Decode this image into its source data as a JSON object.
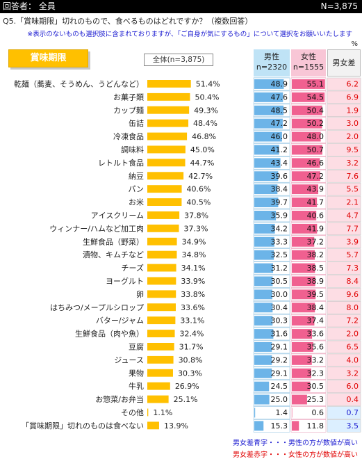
{
  "header": {
    "respondents": "回答者： 全員",
    "n_total": "N=3,875"
  },
  "question": "Q5.「賞味期限」切れのもので、食べるものはどれですか？（複数回答）",
  "note": "※表示のないものも選択肢に含まれておりますが、「ご自身が気にするもの」について選択をお願いいたします",
  "percent_unit": "%",
  "badge_label": "賞味期限",
  "total_label": "全体(n=3,875)",
  "columns": {
    "male_label": "男性",
    "male_n": "n=2320",
    "female_label": "女性",
    "female_n": "n=1555",
    "diff_label": "男女差"
  },
  "legend": {
    "blue_text": "男女差青字・・・男性の方が数値が高い",
    "red_text": "男女差赤字・・・女性の方が数値が高い"
  },
  "colors": {
    "total_bar": "#ffc000",
    "male_bar": "#6cb4e8",
    "female_bar": "#f06090",
    "male_col_bg": "#daeef8",
    "female_col_bg": "#fbe0ea",
    "diff_male_higher_bg": "#dcefff",
    "diff_female_higher_bg": "#fddde4",
    "diff_male_higher_text": "#1a1ad0",
    "diff_female_higher_text": "#e00000"
  },
  "chart_data": {
    "type": "bar",
    "categories": [
      "乾麺（蕎麦、そうめん、うどんなど）",
      "お菓子類",
      "カップ麺",
      "缶詰",
      "冷凍食品",
      "調味料",
      "レトルト食品",
      "納豆",
      "パン",
      "お米",
      "アイスクリーム",
      "ウィンナー/ハムなど加工肉",
      "生鮮食品（野菜）",
      "漬物、キムチなど",
      "チーズ",
      "ヨーグルト",
      "卵",
      "はちみつ/メープルシロップ",
      "バター/ジャム",
      "生鮮食品（肉や魚）",
      "豆腐",
      "ジュース",
      "果物",
      "牛乳",
      "お惣菜/お弁当",
      "その他",
      "「賞味期限」切れのものは食べない"
    ],
    "series": [
      {
        "name": "全体(n=3,875)",
        "values": [
          51.4,
          50.4,
          49.3,
          48.4,
          46.8,
          45.0,
          44.7,
          42.7,
          40.6,
          40.5,
          37.8,
          37.3,
          34.9,
          34.8,
          34.1,
          33.9,
          33.8,
          33.6,
          33.1,
          32.4,
          31.7,
          30.8,
          30.3,
          26.9,
          25.1,
          1.1,
          13.9
        ]
      },
      {
        "name": "男性",
        "values": [
          48.9,
          47.6,
          48.5,
          47.2,
          46.0,
          41.2,
          43.4,
          39.6,
          38.4,
          39.7,
          35.9,
          34.2,
          33.3,
          32.5,
          31.2,
          30.5,
          30.0,
          30.4,
          30.3,
          31.6,
          29.1,
          29.2,
          29.1,
          24.5,
          25.0,
          1.4,
          15.3
        ]
      },
      {
        "name": "女性",
        "values": [
          55.1,
          54.5,
          50.4,
          50.2,
          48.0,
          50.7,
          46.6,
          47.2,
          43.9,
          41.7,
          40.6,
          41.9,
          37.2,
          38.2,
          38.5,
          38.9,
          39.5,
          38.4,
          37.4,
          33.6,
          35.6,
          33.2,
          32.3,
          30.5,
          25.3,
          0.6,
          11.8
        ]
      },
      {
        "name": "男女差",
        "values": [
          6.2,
          6.9,
          1.9,
          3.0,
          2.0,
          9.5,
          3.2,
          7.6,
          5.5,
          2.1,
          4.7,
          7.7,
          3.9,
          5.7,
          7.3,
          8.4,
          9.6,
          8.0,
          7.2,
          2.0,
          6.5,
          4.0,
          3.2,
          6.0,
          0.4,
          0.7,
          3.5
        ]
      }
    ],
    "diff_sign": [
      "F",
      "F",
      "F",
      "F",
      "F",
      "F",
      "F",
      "F",
      "F",
      "F",
      "F",
      "F",
      "F",
      "F",
      "F",
      "F",
      "F",
      "F",
      "F",
      "F",
      "F",
      "F",
      "F",
      "F",
      "F",
      "M",
      "M"
    ],
    "value_suffix": "%",
    "xlim": [
      0,
      100
    ],
    "legend_placement": "none"
  }
}
